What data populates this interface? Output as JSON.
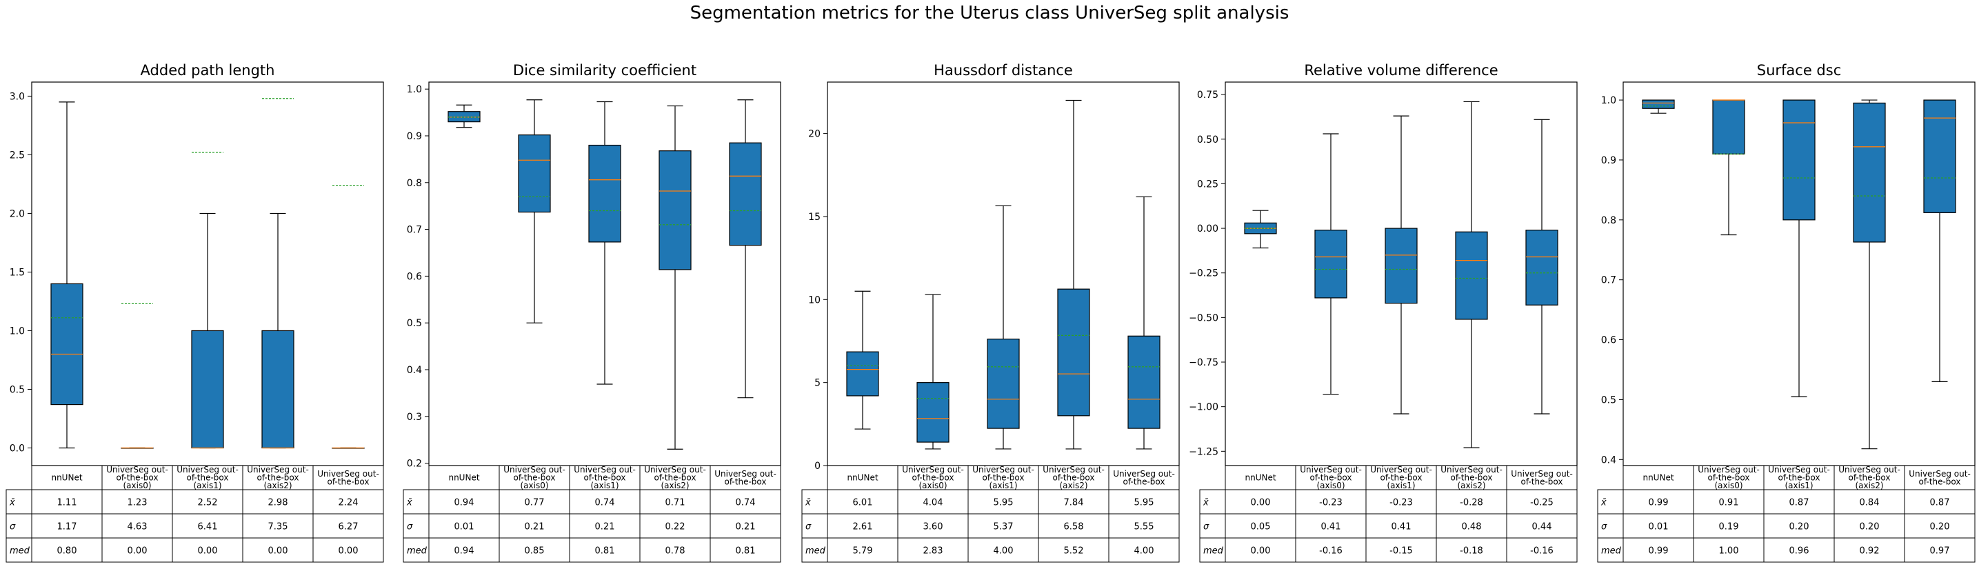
{
  "figure": {
    "title": "Segmentation metrics for the Uterus class UniverSeg split analysis"
  },
  "colors": {
    "box_fill": "#1f77b4",
    "median_line": "#ff7f0e",
    "mean_line": "#2ca02c",
    "frame": "#000000"
  },
  "row_labels": [
    "x̄",
    "σ",
    "med"
  ],
  "chart_data": [
    {
      "type": "box",
      "title": "Added path length",
      "categories": [
        "nnUNet",
        "UniverSeg out-of-the-box (axis0)",
        "UniverSeg out-of-the-box (axis1)",
        "UniverSeg out-of-the-box (axis2)",
        "UniverSeg out-of-the-box"
      ],
      "category_lines": [
        [
          "nnUNet"
        ],
        [
          "UniverSeg out-",
          "of-the-box",
          "(axis0)"
        ],
        [
          "UniverSeg out-",
          "of-the-box",
          "(axis1)"
        ],
        [
          "UniverSeg out-",
          "of-the-box",
          "(axis2)"
        ],
        [
          "UniverSeg out-",
          "of-the-box"
        ]
      ],
      "ylim": [
        -0.15,
        3.12
      ],
      "yticks": [
        0.0,
        0.5,
        1.0,
        1.5,
        2.0,
        2.5,
        3.0
      ],
      "ytick_labels": [
        "0.0",
        "0.5",
        "1.0",
        "1.5",
        "2.0",
        "2.5",
        "3.0"
      ],
      "boxes": [
        {
          "whislo": 0.0,
          "q1": 0.37,
          "med": 0.8,
          "q3": 1.4,
          "whishi": 2.95,
          "mean": 1.11
        },
        {
          "whislo": 0.0,
          "q1": 0.0,
          "med": 0.0,
          "q3": 0.0,
          "whishi": 0.0,
          "mean": 1.23
        },
        {
          "whislo": 0.0,
          "q1": 0.0,
          "med": 0.0,
          "q3": 1.0,
          "whishi": 2.0,
          "mean": 2.52
        },
        {
          "whislo": 0.0,
          "q1": 0.0,
          "med": 0.0,
          "q3": 1.0,
          "whishi": 2.0,
          "mean": 2.98
        },
        {
          "whislo": 0.0,
          "q1": 0.0,
          "med": 0.0,
          "q3": 0.0,
          "whishi": 0.0,
          "mean": 2.24
        }
      ],
      "table": [
        [
          "1.11",
          "1.23",
          "2.52",
          "2.98",
          "2.24"
        ],
        [
          "1.17",
          "4.63",
          "6.41",
          "7.35",
          "6.27"
        ],
        [
          "0.80",
          "0.00",
          "0.00",
          "0.00",
          "0.00"
        ]
      ]
    },
    {
      "type": "box",
      "title": "Dice similarity coefficient",
      "categories": [
        "nnUNet",
        "UniverSeg out-of-the-box (axis0)",
        "UniverSeg out-of-the-box (axis1)",
        "UniverSeg out-of-the-box (axis2)",
        "UniverSeg out-of-the-box"
      ],
      "category_lines": [
        [
          "nnUNet"
        ],
        [
          "UniverSeg out-",
          "of-the-box",
          "(axis0)"
        ],
        [
          "UniverSeg out-",
          "of-the-box",
          "(axis1)"
        ],
        [
          "UniverSeg out-",
          "of-the-box",
          "(axis2)"
        ],
        [
          "UniverSeg out-",
          "of-the-box"
        ]
      ],
      "ylim": [
        0.195,
        1.015
      ],
      "yticks": [
        0.2,
        0.3,
        0.4,
        0.5,
        0.6,
        0.7,
        0.8,
        0.9,
        1.0
      ],
      "ytick_labels": [
        "0.2",
        "0.3",
        "0.4",
        "0.5",
        "0.6",
        "0.7",
        "0.8",
        "0.9",
        "1.0"
      ],
      "boxes": [
        {
          "whislo": 0.918,
          "q1": 0.93,
          "med": 0.94,
          "q3": 0.952,
          "whishi": 0.966,
          "mean": 0.94
        },
        {
          "whislo": 0.5,
          "q1": 0.737,
          "med": 0.848,
          "q3": 0.902,
          "whishi": 0.977,
          "mean": 0.77
        },
        {
          "whislo": 0.369,
          "q1": 0.673,
          "med": 0.806,
          "q3": 0.88,
          "whishi": 0.973,
          "mean": 0.74
        },
        {
          "whislo": 0.23,
          "q1": 0.614,
          "med": 0.782,
          "q3": 0.868,
          "whishi": 0.964,
          "mean": 0.71
        },
        {
          "whislo": 0.34,
          "q1": 0.666,
          "med": 0.814,
          "q3": 0.885,
          "whishi": 0.977,
          "mean": 0.74
        }
      ],
      "table": [
        [
          "0.94",
          "0.77",
          "0.74",
          "0.71",
          "0.74"
        ],
        [
          "0.01",
          "0.21",
          "0.21",
          "0.22",
          "0.21"
        ],
        [
          "0.94",
          "0.85",
          "0.81",
          "0.78",
          "0.81"
        ]
      ]
    },
    {
      "type": "box",
      "title": "Haussdorf distance",
      "categories": [
        "nnUNet",
        "UniverSeg out-of-the-box (axis0)",
        "UniverSeg out-of-the-box (axis1)",
        "UniverSeg out-of-the-box (axis2)",
        "UniverSeg out-of-the-box"
      ],
      "category_lines": [
        [
          "nnUNet"
        ],
        [
          "UniverSeg out-",
          "of-the-box",
          "(axis0)"
        ],
        [
          "UniverSeg out-",
          "of-the-box",
          "(axis1)"
        ],
        [
          "UniverSeg out-",
          "of-the-box",
          "(axis2)"
        ],
        [
          "UniverSeg out-",
          "of-the-box"
        ]
      ],
      "ylim": [
        0.0,
        23.1
      ],
      "yticks": [
        0,
        5,
        10,
        15,
        20
      ],
      "ytick_labels": [
        "0",
        "5",
        "10",
        "15",
        "20"
      ],
      "boxes": [
        {
          "whislo": 2.2,
          "q1": 4.2,
          "med": 5.79,
          "q3": 6.85,
          "whishi": 10.5,
          "mean": 6.01
        },
        {
          "whislo": 1.0,
          "q1": 1.41,
          "med": 2.83,
          "q3": 5.0,
          "whishi": 10.3,
          "mean": 4.04
        },
        {
          "whislo": 1.0,
          "q1": 2.24,
          "med": 4.0,
          "q3": 7.62,
          "whishi": 15.65,
          "mean": 5.95
        },
        {
          "whislo": 1.0,
          "q1": 3.0,
          "med": 5.52,
          "q3": 10.63,
          "whishi": 22.0,
          "mean": 7.84
        },
        {
          "whislo": 1.0,
          "q1": 2.24,
          "med": 4.0,
          "q3": 7.8,
          "whishi": 16.19,
          "mean": 5.95
        }
      ],
      "table": [
        [
          "6.01",
          "4.04",
          "5.95",
          "7.84",
          "5.95"
        ],
        [
          "2.61",
          "3.60",
          "5.37",
          "6.58",
          "5.55"
        ],
        [
          "5.79",
          "2.83",
          "4.00",
          "5.52",
          "4.00"
        ]
      ]
    },
    {
      "type": "box",
      "title": "Relative volume difference",
      "categories": [
        "nnUNet",
        "UniverSeg out-of-the-box (axis0)",
        "UniverSeg out-of-the-box (axis1)",
        "UniverSeg out-of-the-box (axis2)",
        "UniverSeg out-of-the-box"
      ],
      "category_lines": [
        [
          "nnUNet"
        ],
        [
          "UniverSeg out-",
          "of-the-box",
          "(axis0)"
        ],
        [
          "UniverSeg out-",
          "of-the-box",
          "(axis1)"
        ],
        [
          "UniverSeg out-",
          "of-the-box",
          "(axis2)"
        ],
        [
          "UniverSeg out-",
          "of-the-box"
        ]
      ],
      "ylim": [
        -1.33,
        0.82
      ],
      "yticks": [
        -1.25,
        -1.0,
        -0.75,
        -0.5,
        -0.25,
        0.0,
        0.25,
        0.5,
        0.75
      ],
      "ytick_labels": [
        "−1.25",
        "−1.00",
        "−0.75",
        "−0.50",
        "−0.25",
        "0.00",
        "0.25",
        "0.50",
        "0.75"
      ],
      "boxes": [
        {
          "whislo": -0.11,
          "q1": -0.03,
          "med": 0.0,
          "q3": 0.03,
          "whishi": 0.1,
          "mean": 0.0
        },
        {
          "whislo": -0.93,
          "q1": -0.39,
          "med": -0.16,
          "q3": -0.01,
          "whishi": 0.53,
          "mean": -0.23
        },
        {
          "whislo": -1.04,
          "q1": -0.42,
          "med": -0.15,
          "q3": 0.0,
          "whishi": 0.63,
          "mean": -0.23
        },
        {
          "whislo": -1.23,
          "q1": -0.51,
          "med": -0.18,
          "q3": -0.02,
          "whishi": 0.71,
          "mean": -0.28
        },
        {
          "whislo": -1.04,
          "q1": -0.43,
          "med": -0.16,
          "q3": -0.01,
          "whishi": 0.61,
          "mean": -0.25
        }
      ],
      "table": [
        [
          "0.00",
          "-0.23",
          "-0.23",
          "-0.28",
          "-0.25"
        ],
        [
          "0.05",
          "0.41",
          "0.41",
          "0.48",
          "0.44"
        ],
        [
          "0.00",
          "-0.16",
          "-0.15",
          "-0.18",
          "-0.16"
        ]
      ]
    },
    {
      "type": "box",
      "title": "Surface dsc",
      "categories": [
        "nnUNet",
        "UniverSeg out-of-the-box (axis0)",
        "UniverSeg out-of-the-box (axis1)",
        "UniverSeg out-of-the-box (axis2)",
        "UniverSeg out-of-the-box"
      ],
      "category_lines": [
        [
          "nnUNet"
        ],
        [
          "UniverSeg out-",
          "of-the-box",
          "(axis0)"
        ],
        [
          "UniverSeg out-",
          "of-the-box",
          "(axis1)"
        ],
        [
          "UniverSeg out-",
          "of-the-box",
          "(axis2)"
        ],
        [
          "UniverSeg out-",
          "of-the-box"
        ]
      ],
      "ylim": [
        0.39,
        1.03
      ],
      "yticks": [
        0.4,
        0.5,
        0.6,
        0.7,
        0.8,
        0.9,
        1.0
      ],
      "ytick_labels": [
        "0.4",
        "0.5",
        "0.6",
        "0.7",
        "0.8",
        "0.9",
        "1.0"
      ],
      "boxes": [
        {
          "whislo": 0.978,
          "q1": 0.986,
          "med": 0.995,
          "q3": 1.0,
          "whishi": 1.0,
          "mean": 0.99
        },
        {
          "whislo": 0.775,
          "q1": 0.91,
          "med": 1.0,
          "q3": 1.0,
          "whishi": 1.0,
          "mean": 0.91
        },
        {
          "whislo": 0.505,
          "q1": 0.8,
          "med": 0.962,
          "q3": 1.0,
          "whishi": 1.0,
          "mean": 0.87
        },
        {
          "whislo": 0.418,
          "q1": 0.763,
          "med": 0.922,
          "q3": 0.995,
          "whishi": 1.0,
          "mean": 0.84
        },
        {
          "whislo": 0.53,
          "q1": 0.812,
          "med": 0.97,
          "q3": 1.0,
          "whishi": 1.0,
          "mean": 0.87
        }
      ],
      "table": [
        [
          "0.99",
          "0.91",
          "0.87",
          "0.84",
          "0.87"
        ],
        [
          "0.01",
          "0.19",
          "0.20",
          "0.20",
          "0.20"
        ],
        [
          "0.99",
          "1.00",
          "0.96",
          "0.92",
          "0.97"
        ]
      ]
    }
  ]
}
